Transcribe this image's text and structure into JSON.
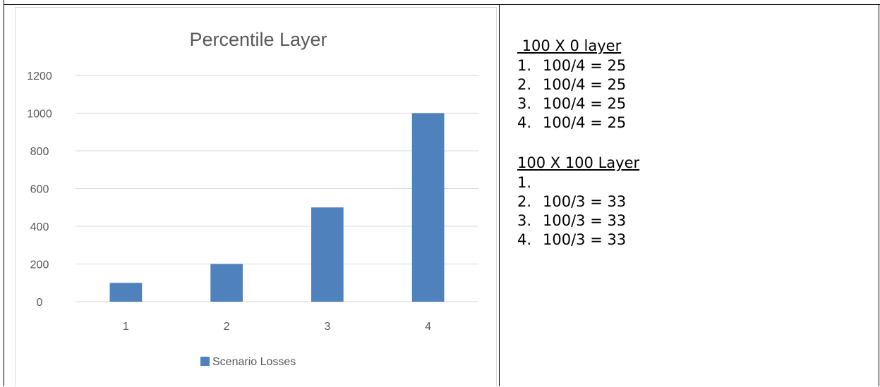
{
  "chart_data": {
    "type": "bar",
    "title": "Percentile Layer",
    "xlabel": "",
    "ylabel": "",
    "categories": [
      "1",
      "2",
      "3",
      "4"
    ],
    "series": [
      {
        "name": "Scenario Losses",
        "values": [
          100,
          200,
          500,
          1000
        ]
      }
    ],
    "ylim": [
      0,
      1200
    ],
    "yticks": [
      0,
      200,
      400,
      600,
      800,
      1000,
      1200
    ],
    "grid": true,
    "legend": "bottom",
    "colors": {
      "bar": "#4f81bd",
      "grid": "#d9d9d9",
      "axis_text": "#595959",
      "title": "#595959"
    }
  },
  "notes": {
    "section1": {
      "heading": " 100 X 0 layer",
      "items": [
        {
          "num": "1.",
          "text": "100/4 = 25"
        },
        {
          "num": "2.",
          "text": "100/4 = 25"
        },
        {
          "num": "3.",
          "text": "100/4 = 25"
        },
        {
          "num": "4.",
          "text": "100/4 = 25"
        }
      ]
    },
    "section2": {
      "heading": "100 X 100 Layer",
      "items": [
        {
          "num": "1.",
          "text": ""
        },
        {
          "num": "2.",
          "text": "100/3 = 33"
        },
        {
          "num": "3.",
          "text": "100/3 = 33"
        },
        {
          "num": "4.",
          "text": "100/3 = 33"
        }
      ]
    }
  }
}
